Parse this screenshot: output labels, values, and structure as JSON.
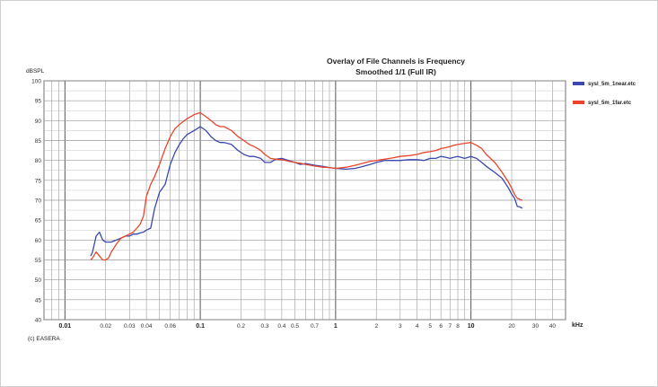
{
  "chart_data": {
    "type": "line",
    "title": "Overlay of File Channels is Frequency",
    "subtitle": "Smoothed 1/1 (Full IR)",
    "ylabel": "dBSPL",
    "xlabel": "kHz",
    "x_scale": "log",
    "xlim": [
      0.007,
      50
    ],
    "ylim": [
      40,
      100
    ],
    "yticks": [
      "100",
      "95",
      "90",
      "85",
      "80",
      "75",
      "70",
      "65",
      "60",
      "55",
      "50",
      "45",
      "40"
    ],
    "ytick_values": [
      100,
      95,
      90,
      85,
      80,
      75,
      70,
      65,
      60,
      55,
      50,
      45,
      40
    ],
    "xticks": [
      {
        "v": 0.01,
        "label": "0.01",
        "major": true
      },
      {
        "v": 0.02,
        "label": "0.02",
        "major": false
      },
      {
        "v": 0.03,
        "label": "0.03",
        "major": false
      },
      {
        "v": 0.04,
        "label": "0.04",
        "major": false
      },
      {
        "v": 0.06,
        "label": "0.06",
        "major": false
      },
      {
        "v": 0.1,
        "label": "0.1",
        "major": true
      },
      {
        "v": 0.2,
        "label": "0.2",
        "major": false
      },
      {
        "v": 0.3,
        "label": "0.3",
        "major": false
      },
      {
        "v": 0.4,
        "label": "0.4",
        "major": false
      },
      {
        "v": 0.5,
        "label": "0.5",
        "major": false
      },
      {
        "v": 0.7,
        "label": "0.7",
        "major": false
      },
      {
        "v": 1,
        "label": "1",
        "major": true
      },
      {
        "v": 2,
        "label": "2",
        "major": false
      },
      {
        "v": 3,
        "label": "3",
        "major": false
      },
      {
        "v": 4,
        "label": "4",
        "major": false
      },
      {
        "v": 5,
        "label": "5",
        "major": false
      },
      {
        "v": 6,
        "label": "6",
        "major": false
      },
      {
        "v": 7,
        "label": "7",
        "major": false
      },
      {
        "v": 8,
        "label": "8",
        "major": false
      },
      {
        "v": 10,
        "label": "10",
        "major": true
      },
      {
        "v": 20,
        "label": "20",
        "major": false
      },
      {
        "v": 30,
        "label": "30",
        "major": false
      },
      {
        "v": 40,
        "label": "40",
        "major": false
      }
    ],
    "grid": true,
    "legend_position": "right",
    "series": [
      {
        "name": "sysl_5m_1near.etc",
        "color": "#3a48b0",
        "x": [
          0.0155,
          0.016,
          0.017,
          0.018,
          0.019,
          0.02,
          0.022,
          0.024,
          0.026,
          0.028,
          0.03,
          0.032,
          0.034,
          0.036,
          0.038,
          0.04,
          0.043,
          0.046,
          0.05,
          0.055,
          0.06,
          0.065,
          0.07,
          0.075,
          0.08,
          0.085,
          0.09,
          0.095,
          0.1,
          0.11,
          0.12,
          0.13,
          0.14,
          0.15,
          0.17,
          0.19,
          0.21,
          0.23,
          0.25,
          0.28,
          0.3,
          0.33,
          0.36,
          0.4,
          0.45,
          0.5,
          0.55,
          0.6,
          0.7,
          0.8,
          0.9,
          1.0,
          1.2,
          1.4,
          1.6,
          1.8,
          2.0,
          2.3,
          2.6,
          3.0,
          3.5,
          4.0,
          4.5,
          5.0,
          5.5,
          6.0,
          6.5,
          7.0,
          7.5,
          8.0,
          9.0,
          10.0,
          11.0,
          12.0,
          13.0,
          15.0,
          17.0,
          19.0,
          20.0,
          21.0,
          22.0,
          23.0,
          24.0
        ],
        "y": [
          56,
          57,
          61,
          62,
          60,
          59.5,
          59.5,
          60,
          60.5,
          61,
          61,
          61.5,
          61.5,
          61.8,
          62,
          62.5,
          63,
          68,
          72,
          74,
          79,
          82,
          84,
          85.5,
          86.5,
          87,
          87.5,
          88,
          88.5,
          87.5,
          86,
          85,
          84.5,
          84.5,
          84,
          82.5,
          81.5,
          81,
          81,
          80.5,
          79.5,
          79.5,
          80.3,
          80.5,
          80,
          79.5,
          79,
          79.2,
          78.8,
          78.5,
          78.2,
          78,
          77.8,
          78,
          78.5,
          79,
          79.5,
          80,
          80,
          80,
          80.2,
          80.2,
          80,
          80.5,
          80.5,
          81,
          80.8,
          80.5,
          80.8,
          81,
          80.5,
          81,
          80.5,
          79.5,
          78.5,
          77,
          75.5,
          73,
          71.5,
          70.5,
          68.5,
          68.3,
          68
        ]
      },
      {
        "name": "sysl_5m_1far.etc",
        "color": "#e8452c",
        "x": [
          0.0155,
          0.016,
          0.017,
          0.018,
          0.019,
          0.02,
          0.021,
          0.022,
          0.024,
          0.026,
          0.028,
          0.03,
          0.032,
          0.034,
          0.036,
          0.038,
          0.04,
          0.043,
          0.046,
          0.05,
          0.055,
          0.06,
          0.065,
          0.07,
          0.075,
          0.08,
          0.085,
          0.09,
          0.095,
          0.1,
          0.11,
          0.12,
          0.13,
          0.14,
          0.15,
          0.17,
          0.19,
          0.21,
          0.23,
          0.25,
          0.28,
          0.3,
          0.33,
          0.36,
          0.4,
          0.45,
          0.5,
          0.55,
          0.6,
          0.7,
          0.8,
          0.9,
          1.0,
          1.2,
          1.4,
          1.6,
          1.8,
          2.0,
          2.3,
          2.6,
          3.0,
          3.5,
          4.0,
          4.5,
          5.0,
          5.5,
          6.0,
          6.5,
          7.0,
          7.5,
          8.0,
          9.0,
          10.0,
          11.0,
          12.0,
          13.0,
          15.0,
          17.0,
          19.0,
          20.0,
          21.0,
          22.0,
          23.0,
          24.0
        ],
        "y": [
          55,
          55.5,
          57,
          56,
          55,
          55,
          55.5,
          57,
          59,
          60.5,
          61,
          61.5,
          62,
          63,
          64,
          66,
          71,
          74,
          76,
          79,
          83,
          86,
          88,
          89,
          89.8,
          90.5,
          91,
          91.5,
          91.8,
          92,
          91,
          90,
          89,
          88.5,
          88.5,
          87.5,
          86,
          85,
          84,
          83.5,
          82.5,
          81.5,
          80.5,
          80.3,
          80.2,
          79.8,
          79.5,
          79.3,
          79,
          78.6,
          78.3,
          78.2,
          78,
          78.3,
          78.8,
          79.3,
          79.8,
          80,
          80.3,
          80.6,
          81,
          81.2,
          81.5,
          82,
          82.2,
          82.5,
          83,
          83.2,
          83.5,
          83.8,
          84,
          84.3,
          84.5,
          83.8,
          83,
          81.5,
          79.5,
          77,
          74.5,
          73,
          71.5,
          70.5,
          70.2,
          70
        ]
      }
    ]
  },
  "footer": {
    "copyright": "(c) EASERA"
  }
}
